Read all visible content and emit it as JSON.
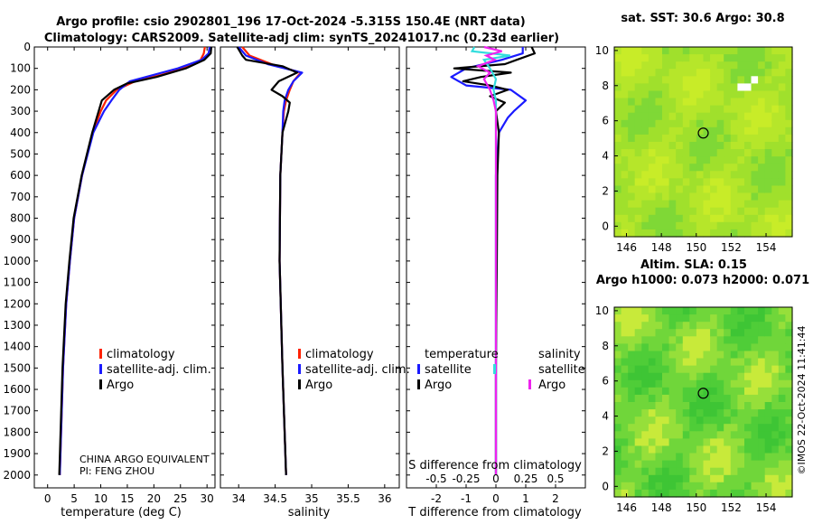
{
  "titles": {
    "line1": "Argo profile: csio 2902801_196 17-Oct-2024 -5.315S 150.4E (NRT data)",
    "line2": "Climatology: CARS2009. Satellite-adj clim: synTS_20241017.nc (0.23d earlier)",
    "map1": "sat. SST: 30.6 Argo: 30.8",
    "map2_line1": "Altim. SLA: 0.15",
    "map2_line2": "Argo h1000: 0.073 h2000: 0.071"
  },
  "watermark": "©IMOS 22-Oct-2024 11:41:44",
  "pi_line1": "CHINA ARGO EQUIVALENT",
  "pi_line2": "PI: FENG ZHOU",
  "legend_main": [
    "climatology",
    "satellite-adj. clim.",
    "Argo"
  ],
  "legend_diff": {
    "temp_title": "temperature",
    "sal_title": "salinity",
    "temp_items": [
      "satellite",
      "Argo"
    ],
    "sal_items": [
      "satellite",
      "Argo"
    ]
  },
  "colors": {
    "climatology": "#ff2200",
    "satellite": "#1a1aff",
    "argo": "#000000",
    "sat_sal": "#33dddd",
    "argo_sal": "#ee22ee"
  },
  "chart_data": [
    {
      "type": "line",
      "name": "temperature profile",
      "xlabel": "temperature (deg C)",
      "ylabel": "depth",
      "xlim": [
        -2.5,
        31.5
      ],
      "ylim": [
        2060,
        0
      ],
      "xticks": [
        0,
        5,
        10,
        15,
        20,
        25,
        30
      ],
      "yticks": [
        0,
        100,
        200,
        300,
        400,
        500,
        600,
        700,
        800,
        900,
        1000,
        1100,
        1200,
        1300,
        1400,
        1500,
        1600,
        1700,
        1800,
        1900,
        2000
      ],
      "series": [
        {
          "name": "climatology",
          "color": "#ff2200",
          "depth": [
            0,
            30,
            60,
            100,
            130,
            160,
            200,
            250,
            300,
            400,
            600,
            800,
            1000,
            1200,
            1500,
            2000
          ],
          "values": [
            29.6,
            29.4,
            28.8,
            25.5,
            21.5,
            16.5,
            13.0,
            11.0,
            10.0,
            8.5,
            6.5,
            5.0,
            4.2,
            3.5,
            2.9,
            2.3
          ]
        },
        {
          "name": "satellite-adj. clim.",
          "color": "#1a1aff",
          "depth": [
            0,
            30,
            60,
            100,
            130,
            160,
            200,
            250,
            300,
            400,
            600,
            800,
            1000,
            1200,
            1500,
            2000
          ],
          "values": [
            30.5,
            30.3,
            29.0,
            24.5,
            20.0,
            15.5,
            13.5,
            12.0,
            10.6,
            8.6,
            6.5,
            5.0,
            4.2,
            3.5,
            2.9,
            2.3
          ]
        },
        {
          "name": "Argo",
          "color": "#000000",
          "depth": [
            0,
            30,
            60,
            100,
            140,
            170,
            200,
            250,
            300,
            400,
            600,
            800,
            1000,
            1200,
            1500,
            2000
          ],
          "values": [
            30.8,
            30.7,
            29.5,
            26.0,
            20.5,
            15.0,
            12.5,
            10.2,
            9.6,
            8.4,
            6.4,
            4.9,
            4.1,
            3.4,
            2.8,
            2.2
          ]
        }
      ]
    },
    {
      "type": "line",
      "name": "salinity profile",
      "xlabel": "salinity",
      "ylabel": "depth",
      "xlim": [
        33.75,
        36.2
      ],
      "ylim": [
        2060,
        0
      ],
      "xticks": [
        34,
        34.5,
        35,
        35.5,
        36
      ],
      "xtick_labels": [
        "34",
        "34.5",
        "35",
        "35.5",
        "36"
      ],
      "series": [
        {
          "name": "climatology",
          "color": "#ff2200",
          "depth": [
            0,
            40,
            80,
            120,
            160,
            200,
            250,
            300,
            400,
            600,
            1000,
            1500,
            2000
          ],
          "values": [
            34.05,
            34.15,
            34.45,
            34.85,
            34.75,
            34.7,
            34.65,
            34.62,
            34.6,
            34.57,
            34.56,
            34.6,
            34.65
          ]
        },
        {
          "name": "satellite-adj. clim.",
          "color": "#1a1aff",
          "depth": [
            0,
            40,
            80,
            120,
            160,
            200,
            250,
            300,
            400,
            600,
            1000,
            1500,
            2000
          ],
          "values": [
            34.0,
            34.1,
            34.4,
            34.87,
            34.75,
            34.68,
            34.63,
            34.61,
            34.6,
            34.57,
            34.56,
            34.6,
            34.65
          ]
        },
        {
          "name": "Argo",
          "color": "#000000",
          "depth": [
            0,
            40,
            60,
            90,
            120,
            160,
            200,
            230,
            260,
            300,
            400,
            600,
            1000,
            1500,
            2000
          ],
          "values": [
            33.98,
            34.05,
            34.1,
            34.6,
            34.8,
            34.55,
            34.45,
            34.6,
            34.7,
            34.68,
            34.6,
            34.57,
            34.56,
            34.6,
            34.65
          ]
        }
      ]
    },
    {
      "type": "line",
      "name": "difference from climatology",
      "xlabel": "T difference from climatology",
      "xlabel_top": "S difference from climatology",
      "xlim": [
        -3,
        3
      ],
      "ylim": [
        2060,
        0
      ],
      "xticks": [
        -2,
        -1,
        0,
        1,
        2
      ],
      "xtick_labels": [
        "-2",
        "-1",
        "0",
        "1",
        "2"
      ],
      "sticks": [
        -0.5,
        -0.25,
        0,
        0.25,
        0.5
      ],
      "stick_labels": [
        "-0.5",
        "-0.25",
        "0",
        "0.25",
        "0.5"
      ],
      "series": [
        {
          "name": "temperature satellite",
          "color": "#1a1aff",
          "depth": [
            0,
            30,
            60,
            100,
            140,
            180,
            200,
            250,
            300,
            330,
            400,
            600,
            800,
            1000,
            1500,
            2000
          ],
          "values": [
            0.9,
            0.9,
            0.2,
            -1.0,
            -1.5,
            -1.0,
            0.5,
            1.0,
            0.6,
            0.4,
            0.1,
            0.0,
            0.0,
            0.0,
            0.0,
            0.0
          ]
        },
        {
          "name": "temperature Argo",
          "color": "#000000",
          "depth": [
            0,
            30,
            60,
            80,
            100,
            120,
            140,
            160,
            180,
            200,
            230,
            260,
            300,
            400,
            600,
            1000,
            1500,
            2000
          ],
          "values": [
            1.2,
            1.3,
            0.7,
            0.3,
            -1.4,
            0.5,
            -0.5,
            -1.1,
            -0.2,
            0.4,
            -0.2,
            0.3,
            0.0,
            0.1,
            0.05,
            0.03,
            0.0,
            0.0
          ]
        },
        {
          "name": "salinity satellite",
          "color": "#33dddd",
          "depth": [
            0,
            20,
            40,
            60,
            100,
            150,
            200,
            250,
            300,
            400,
            600,
            1000,
            2000
          ],
          "values": [
            -0.18,
            -0.2,
            0.12,
            -0.1,
            -0.05,
            0.0,
            -0.02,
            0.0,
            0.0,
            0.0,
            0.0,
            0.0,
            0.0
          ]
        },
        {
          "name": "salinity Argo",
          "color": "#ee22ee",
          "depth": [
            0,
            20,
            40,
            60,
            90,
            120,
            150,
            200,
            250,
            300,
            400,
            600,
            1000,
            2000
          ],
          "values": [
            -0.1,
            0.05,
            -0.08,
            -0.01,
            -0.15,
            -0.05,
            -0.1,
            -0.05,
            -0.02,
            0.0,
            0.0,
            0.0,
            0.0,
            0.0
          ]
        }
      ]
    },
    {
      "type": "heatmap",
      "name": "SST map",
      "title": "sat. SST: 30.6 Argo: 30.8",
      "xlim": [
        145.3,
        155.5
      ],
      "ylim": [
        -0.6,
        10.2
      ],
      "xticks": [
        146,
        148,
        150,
        152,
        154
      ],
      "yticks": [
        0,
        2,
        4,
        6,
        8,
        10
      ],
      "argo_position": [
        150.4,
        5.3
      ]
    },
    {
      "type": "heatmap",
      "name": "SLA map",
      "title": "Altim. SLA: 0.15",
      "xlim": [
        145.3,
        155.5
      ],
      "ylim": [
        -0.6,
        10.2
      ],
      "xticks": [
        146,
        148,
        150,
        152,
        154
      ],
      "yticks": [
        0,
        2,
        4,
        6,
        8,
        10
      ],
      "argo_position": [
        150.4,
        5.3
      ]
    }
  ]
}
